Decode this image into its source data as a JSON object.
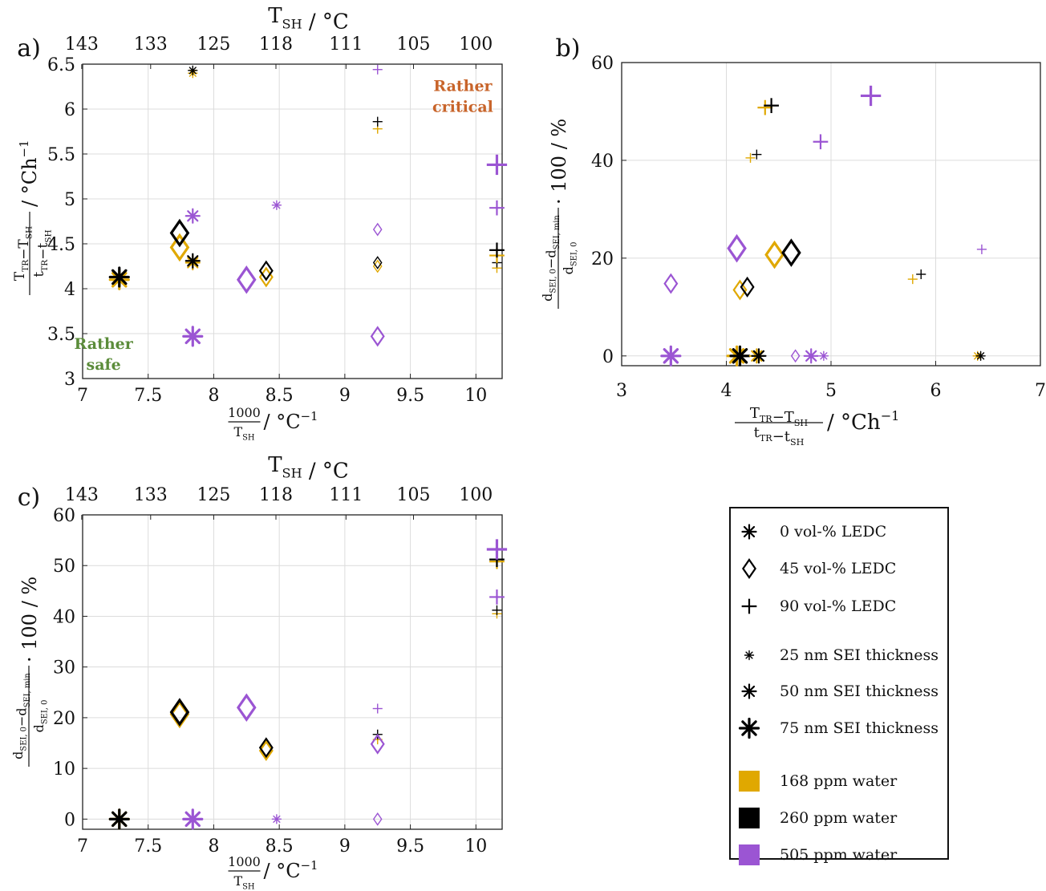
{
  "colors": {
    "water_168": "#e0a800",
    "water_260": "#000000",
    "water_505": "#9b55d3",
    "grid": "#dcdcdc",
    "safe_text": "#5b8c3a",
    "critical_text": "#c8642a"
  },
  "chart_data": [
    {
      "panel": "a)",
      "type": "scatter",
      "xlabel_num": "1000",
      "xlabel_den": "T",
      "xlabel_den_sub": "SH",
      "xlabel_unit": " / °C",
      "xlabel_unit_sup": "−1",
      "ylabel_num": "T",
      "ylabel_num_sub": "TR",
      "ylabel_num_mid": "−T",
      "ylabel_num_sub2": "SH",
      "ylabel_den": "t",
      "ylabel_den_sub": "TR",
      "ylabel_den_mid": "−t",
      "ylabel_den_sub2": "SH",
      "ylabel_unit": " / °Ch",
      "ylabel_unit_sup": "−1",
      "top_axis_label": "T",
      "top_axis_label_sub": "SH",
      "top_axis_label_unit": " / °C",
      "top_ticks": [
        "143",
        "133",
        "125",
        "118",
        "111",
        "105",
        "100"
      ],
      "xlim": [
        7,
        10.2
      ],
      "ylim": [
        3,
        6.5
      ],
      "xticks": [
        "7",
        "7.5",
        "8",
        "8.5",
        "9",
        "9.5",
        "10"
      ],
      "yticks": [
        "3",
        "3.5",
        "4",
        "4.5",
        "5",
        "5.5",
        "6",
        "6.5"
      ],
      "annotations": [
        {
          "lines": [
            "Rather",
            "safe"
          ],
          "color_key": "safe_text",
          "x": 7.16,
          "y": 3.33
        },
        {
          "lines": [
            "Rather",
            "critical"
          ],
          "color_key": "critical_text",
          "x": 9.9,
          "y": 6.2
        }
      ],
      "points": [
        {
          "x": 7.28,
          "y": 4.1,
          "marker": "asterisk",
          "size": 3,
          "water": "168"
        },
        {
          "x": 7.28,
          "y": 4.13,
          "marker": "asterisk",
          "size": 3,
          "water": "260"
        },
        {
          "x": 7.74,
          "y": 4.46,
          "marker": "diamond",
          "size": 3,
          "water": "168"
        },
        {
          "x": 7.74,
          "y": 4.62,
          "marker": "diamond",
          "size": 3,
          "water": "260"
        },
        {
          "x": 7.84,
          "y": 6.4,
          "marker": "asterisk",
          "size": 1,
          "water": "168"
        },
        {
          "x": 7.84,
          "y": 6.43,
          "marker": "asterisk",
          "size": 1,
          "water": "260"
        },
        {
          "x": 7.84,
          "y": 4.29,
          "marker": "asterisk",
          "size": 2,
          "water": "168"
        },
        {
          "x": 7.84,
          "y": 4.31,
          "marker": "asterisk",
          "size": 2,
          "water": "260"
        },
        {
          "x": 7.84,
          "y": 4.81,
          "marker": "asterisk",
          "size": 2,
          "water": "505"
        },
        {
          "x": 7.84,
          "y": 3.47,
          "marker": "asterisk",
          "size": 3,
          "water": "505"
        },
        {
          "x": 8.25,
          "y": 4.1,
          "marker": "diamond",
          "size": 3,
          "water": "505"
        },
        {
          "x": 8.4,
          "y": 4.13,
          "marker": "diamond",
          "size": 2,
          "water": "168"
        },
        {
          "x": 8.4,
          "y": 4.2,
          "marker": "diamond",
          "size": 2,
          "water": "260"
        },
        {
          "x": 8.48,
          "y": 4.93,
          "marker": "asterisk",
          "size": 1,
          "water": "505"
        },
        {
          "x": 9.25,
          "y": 5.78,
          "marker": "plus",
          "size": 1,
          "water": "168"
        },
        {
          "x": 9.25,
          "y": 5.86,
          "marker": "plus",
          "size": 1,
          "water": "260"
        },
        {
          "x": 9.25,
          "y": 6.44,
          "marker": "plus",
          "size": 1,
          "water": "505"
        },
        {
          "x": 9.25,
          "y": 4.25,
          "marker": "diamond",
          "size": 1,
          "water": "168"
        },
        {
          "x": 9.25,
          "y": 4.29,
          "marker": "diamond",
          "size": 1,
          "water": "260"
        },
        {
          "x": 9.25,
          "y": 4.66,
          "marker": "diamond",
          "size": 1,
          "water": "505"
        },
        {
          "x": 9.25,
          "y": 3.47,
          "marker": "diamond",
          "size": 2,
          "water": "505"
        },
        {
          "x": 10.16,
          "y": 4.23,
          "marker": "plus",
          "size": 1,
          "water": "168"
        },
        {
          "x": 10.16,
          "y": 4.29,
          "marker": "plus",
          "size": 1,
          "water": "260"
        },
        {
          "x": 10.16,
          "y": 4.37,
          "marker": "plus",
          "size": 2,
          "water": "168"
        },
        {
          "x": 10.16,
          "y": 4.43,
          "marker": "plus",
          "size": 2,
          "water": "260"
        },
        {
          "x": 10.16,
          "y": 4.9,
          "marker": "plus",
          "size": 2,
          "water": "505"
        },
        {
          "x": 10.16,
          "y": 5.38,
          "marker": "plus",
          "size": 3,
          "water": "505"
        }
      ]
    },
    {
      "panel": "b)",
      "type": "scatter",
      "xlabel_num": "T",
      "xlabel_num_sub": "TR",
      "xlabel_num_mid": "−T",
      "xlabel_num_sub2": "SH",
      "xlabel_den": "t",
      "xlabel_den_sub": "TR",
      "xlabel_den_mid": "−t",
      "xlabel_den_sub2": "SH",
      "xlabel_unit": " / °Ch",
      "xlabel_unit_sup": "−1",
      "ylabel_num": "d",
      "ylabel_num_sub": "SEI, 0",
      "ylabel_num_mid": "−d",
      "ylabel_num_sub2": "SEI, min",
      "ylabel_den": "d",
      "ylabel_den_sub": "SEI, 0",
      "ylabel_unit": " · 100 / %",
      "xlim": [
        3,
        7
      ],
      "ylim": [
        -2,
        60
      ],
      "xticks": [
        "3",
        "4",
        "5",
        "6",
        "7"
      ],
      "yticks": [
        "0",
        "20",
        "40",
        "60"
      ],
      "points": [
        {
          "x": 3.47,
          "y": 0,
          "marker": "asterisk",
          "size": 3,
          "water": "505"
        },
        {
          "x": 3.47,
          "y": 14.8,
          "marker": "diamond",
          "size": 2,
          "water": "505"
        },
        {
          "x": 4.1,
          "y": 0,
          "marker": "asterisk",
          "size": 3,
          "water": "168"
        },
        {
          "x": 4.13,
          "y": 0,
          "marker": "asterisk",
          "size": 3,
          "water": "260"
        },
        {
          "x": 4.1,
          "y": 22,
          "marker": "diamond",
          "size": 3,
          "water": "505"
        },
        {
          "x": 4.13,
          "y": 13.5,
          "marker": "diamond",
          "size": 2,
          "water": "168"
        },
        {
          "x": 4.2,
          "y": 14.1,
          "marker": "diamond",
          "size": 2,
          "water": "260"
        },
        {
          "x": 4.23,
          "y": 40.5,
          "marker": "plus",
          "size": 1,
          "water": "168"
        },
        {
          "x": 4.29,
          "y": 41.2,
          "marker": "plus",
          "size": 1,
          "water": "260"
        },
        {
          "x": 4.29,
          "y": 0,
          "marker": "asterisk",
          "size": 2,
          "water": "168"
        },
        {
          "x": 4.31,
          "y": 0,
          "marker": "asterisk",
          "size": 2,
          "water": "260"
        },
        {
          "x": 4.37,
          "y": 50.8,
          "marker": "plus",
          "size": 2,
          "water": "168"
        },
        {
          "x": 4.43,
          "y": 51.2,
          "marker": "plus",
          "size": 2,
          "water": "260"
        },
        {
          "x": 4.46,
          "y": 20.7,
          "marker": "diamond",
          "size": 3,
          "water": "168"
        },
        {
          "x": 4.62,
          "y": 21.1,
          "marker": "diamond",
          "size": 3,
          "water": "260"
        },
        {
          "x": 4.66,
          "y": 0,
          "marker": "diamond",
          "size": 1,
          "water": "505"
        },
        {
          "x": 4.81,
          "y": 0,
          "marker": "asterisk",
          "size": 2,
          "water": "505"
        },
        {
          "x": 4.9,
          "y": 43.8,
          "marker": "plus",
          "size": 2,
          "water": "505"
        },
        {
          "x": 4.93,
          "y": 0,
          "marker": "asterisk",
          "size": 1,
          "water": "505"
        },
        {
          "x": 5.38,
          "y": 53.2,
          "marker": "plus",
          "size": 3,
          "water": "505"
        },
        {
          "x": 5.78,
          "y": 15.7,
          "marker": "plus",
          "size": 1,
          "water": "168"
        },
        {
          "x": 5.86,
          "y": 16.7,
          "marker": "plus",
          "size": 1,
          "water": "260"
        },
        {
          "x": 6.4,
          "y": 0,
          "marker": "asterisk",
          "size": 1,
          "water": "168"
        },
        {
          "x": 6.43,
          "y": 0,
          "marker": "asterisk",
          "size": 1,
          "water": "260"
        },
        {
          "x": 6.44,
          "y": 21.8,
          "marker": "plus",
          "size": 1,
          "water": "505"
        }
      ]
    },
    {
      "panel": "c)",
      "type": "scatter",
      "xlabel_num": "1000",
      "xlabel_den": "T",
      "xlabel_den_sub": "SH",
      "xlabel_unit": " / °C",
      "xlabel_unit_sup": "−1",
      "ylabel_num": "d",
      "ylabel_num_sub": "SEI, 0",
      "ylabel_num_mid": "−d",
      "ylabel_num_sub2": "SEI, min",
      "ylabel_den": "d",
      "ylabel_den_sub": "SEI, 0",
      "ylabel_unit": " · 100 / %",
      "top_axis_label": "T",
      "top_axis_label_sub": "SH",
      "top_axis_label_unit": " / °C",
      "top_ticks": [
        "143",
        "133",
        "125",
        "118",
        "111",
        "105",
        "100"
      ],
      "xlim": [
        7,
        10.2
      ],
      "ylim": [
        -2,
        60
      ],
      "xticks": [
        "7",
        "7.5",
        "8",
        "8.5",
        "9",
        "9.5",
        "10"
      ],
      "yticks": [
        "0",
        "10",
        "20",
        "30",
        "40",
        "50",
        "60"
      ],
      "points": [
        {
          "x": 7.28,
          "y": 0,
          "marker": "asterisk",
          "size": 3,
          "water": "168"
        },
        {
          "x": 7.28,
          "y": 0,
          "marker": "asterisk",
          "size": 3,
          "water": "260"
        },
        {
          "x": 7.74,
          "y": 20.7,
          "marker": "diamond",
          "size": 3,
          "water": "168"
        },
        {
          "x": 7.74,
          "y": 21.1,
          "marker": "diamond",
          "size": 3,
          "water": "260"
        },
        {
          "x": 7.84,
          "y": 0,
          "marker": "asterisk",
          "size": 3,
          "water": "505"
        },
        {
          "x": 7.84,
          "y": 0,
          "marker": "asterisk",
          "size": 2,
          "water": "505"
        },
        {
          "x": 8.25,
          "y": 22,
          "marker": "diamond",
          "size": 3,
          "water": "505"
        },
        {
          "x": 8.4,
          "y": 13.5,
          "marker": "diamond",
          "size": 2,
          "water": "168"
        },
        {
          "x": 8.4,
          "y": 14.1,
          "marker": "diamond",
          "size": 2,
          "water": "260"
        },
        {
          "x": 8.48,
          "y": 0,
          "marker": "asterisk",
          "size": 1,
          "water": "505"
        },
        {
          "x": 9.25,
          "y": 15.7,
          "marker": "plus",
          "size": 1,
          "water": "168"
        },
        {
          "x": 9.25,
          "y": 16.7,
          "marker": "plus",
          "size": 1,
          "water": "260"
        },
        {
          "x": 9.25,
          "y": 21.8,
          "marker": "plus",
          "size": 1,
          "water": "505"
        },
        {
          "x": 9.25,
          "y": 14.8,
          "marker": "diamond",
          "size": 2,
          "water": "505"
        },
        {
          "x": 9.25,
          "y": 0,
          "marker": "diamond",
          "size": 1,
          "water": "505"
        },
        {
          "x": 10.16,
          "y": 40.5,
          "marker": "plus",
          "size": 1,
          "water": "168"
        },
        {
          "x": 10.16,
          "y": 41.2,
          "marker": "plus",
          "size": 1,
          "water": "260"
        },
        {
          "x": 10.16,
          "y": 50.8,
          "marker": "plus",
          "size": 2,
          "water": "168"
        },
        {
          "x": 10.16,
          "y": 51.2,
          "marker": "plus",
          "size": 2,
          "water": "260"
        },
        {
          "x": 10.16,
          "y": 43.8,
          "marker": "plus",
          "size": 2,
          "water": "505"
        },
        {
          "x": 10.16,
          "y": 53.2,
          "marker": "plus",
          "size": 3,
          "water": "505"
        }
      ]
    }
  ],
  "legend": {
    "items": [
      {
        "label": "0 vol-% LEDC",
        "kind": "marker",
        "marker": "asterisk",
        "size": 2
      },
      {
        "label": "45 vol-% LEDC",
        "kind": "marker",
        "marker": "diamond",
        "size": 2
      },
      {
        "label": "90 vol-% LEDC",
        "kind": "marker",
        "marker": "plus",
        "size": 2
      },
      {
        "label": "25 nm SEI thickness",
        "kind": "marker",
        "marker": "asterisk",
        "size": 1
      },
      {
        "label": "50 nm SEI thickness",
        "kind": "marker",
        "marker": "asterisk",
        "size": 2
      },
      {
        "label": "75 nm SEI thickness",
        "kind": "marker",
        "marker": "asterisk",
        "size": 3
      },
      {
        "label": "168 ppm water",
        "kind": "swatch",
        "water": "168"
      },
      {
        "label": "260 ppm water",
        "kind": "swatch",
        "water": "260"
      },
      {
        "label": "505 ppm water",
        "kind": "swatch",
        "water": "505"
      }
    ]
  }
}
